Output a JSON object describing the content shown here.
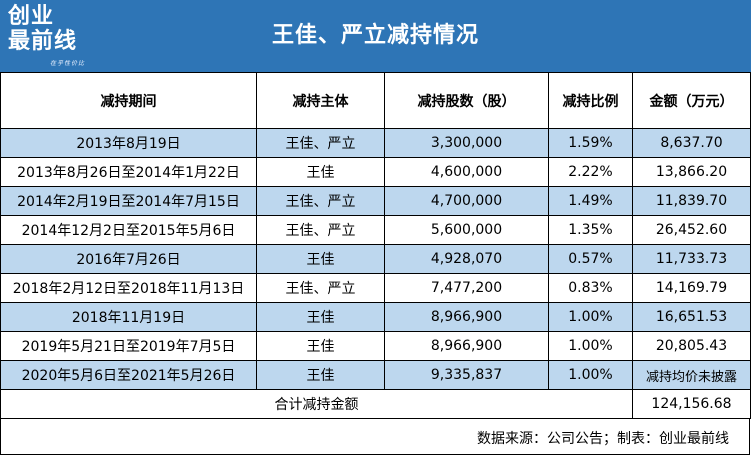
{
  "brand": {
    "logo_line1": "创业",
    "logo_line2": "最前线",
    "logo_sub": "在乎性价比"
  },
  "title": "王佳、严立减持情况",
  "table": {
    "headers": [
      "减持期间",
      "减持主体",
      "减持股数（股）",
      "减持比例",
      "金额（万元）"
    ],
    "rows": [
      [
        "2013年8月19日",
        "王佳、严立",
        "3,300,000",
        "1.59%",
        "8,637.70"
      ],
      [
        "2013年8月26日至2014年1月22日",
        "王佳",
        "4,600,000",
        "2.22%",
        "13,866.20"
      ],
      [
        "2014年2月19日至2014年7月15日",
        "王佳、严立",
        "4,700,000",
        "1.49%",
        "11,839.70"
      ],
      [
        "2014年12月2日至2015年5月6日",
        "王佳、严立",
        "5,600,000",
        "1.35%",
        "26,452.60"
      ],
      [
        "2016年7月26日",
        "王佳",
        "4,928,070",
        "0.57%",
        "11,733.73"
      ],
      [
        "2018年2月12日至2018年11月13日",
        "王佳、严立",
        "7,477,200",
        "0.83%",
        "14,169.79"
      ],
      [
        "2018年11月19日",
        "王佳",
        "8,966,900",
        "1.00%",
        "16,651.53"
      ],
      [
        "2019年5月21日至2019年7月5日",
        "王佳",
        "8,966,900",
        "1.00%",
        "20,805.43"
      ],
      [
        "2020年5月6日至2021年5月26日",
        "王佳",
        "9,335,837",
        "1.00%",
        "减持均价未披露"
      ]
    ],
    "total_label": "合计减持金额",
    "total_value": "124,156.68"
  },
  "source": "数据来源：公司公告；制表：创业最前线",
  "colors": {
    "header_bg": "#2e75b6",
    "row_shade": "#bdd7ee"
  }
}
